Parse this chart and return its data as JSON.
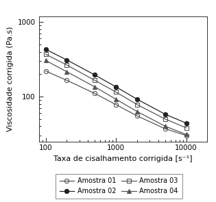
{
  "title": "",
  "xlabel": "Taxa de cisalhamento corrigida [s⁻¹]",
  "ylabel": "Viscosidade corrigida (Pa.s)",
  "xlim": [
    80,
    20000
  ],
  "ylim": [
    25,
    1200
  ],
  "series": [
    {
      "label": "Amostra 01",
      "marker": "o",
      "fillstyle": "none",
      "color": "#555555",
      "x": [
        100,
        200,
        500,
        1000,
        2000,
        5000,
        10000
      ],
      "y": [
        220,
        165,
        110,
        78,
        55,
        37,
        30
      ]
    },
    {
      "label": "Amostra 02",
      "marker": "o",
      "fillstyle": "full",
      "color": "#222222",
      "x": [
        100,
        200,
        500,
        1000,
        2000,
        5000,
        10000
      ],
      "y": [
        430,
        310,
        195,
        135,
        92,
        58,
        44
      ]
    },
    {
      "label": "Amostra 03",
      "marker": "s",
      "fillstyle": "none",
      "color": "#555555",
      "x": [
        100,
        200,
        500,
        1000,
        2000,
        5000,
        10000
      ],
      "y": [
        370,
        265,
        165,
        115,
        78,
        50,
        38
      ]
    },
    {
      "label": "Amostra 04",
      "marker": "^",
      "fillstyle": "full",
      "color": "#555555",
      "x": [
        100,
        200,
        500,
        1000,
        2000,
        5000,
        10000
      ],
      "y": [
        305,
        215,
        135,
        92,
        63,
        40,
        31
      ]
    }
  ],
  "legend_ncol": 2,
  "background_color": "#ffffff",
  "figsize": [
    3.15,
    2.95
  ],
  "dpi": 100
}
